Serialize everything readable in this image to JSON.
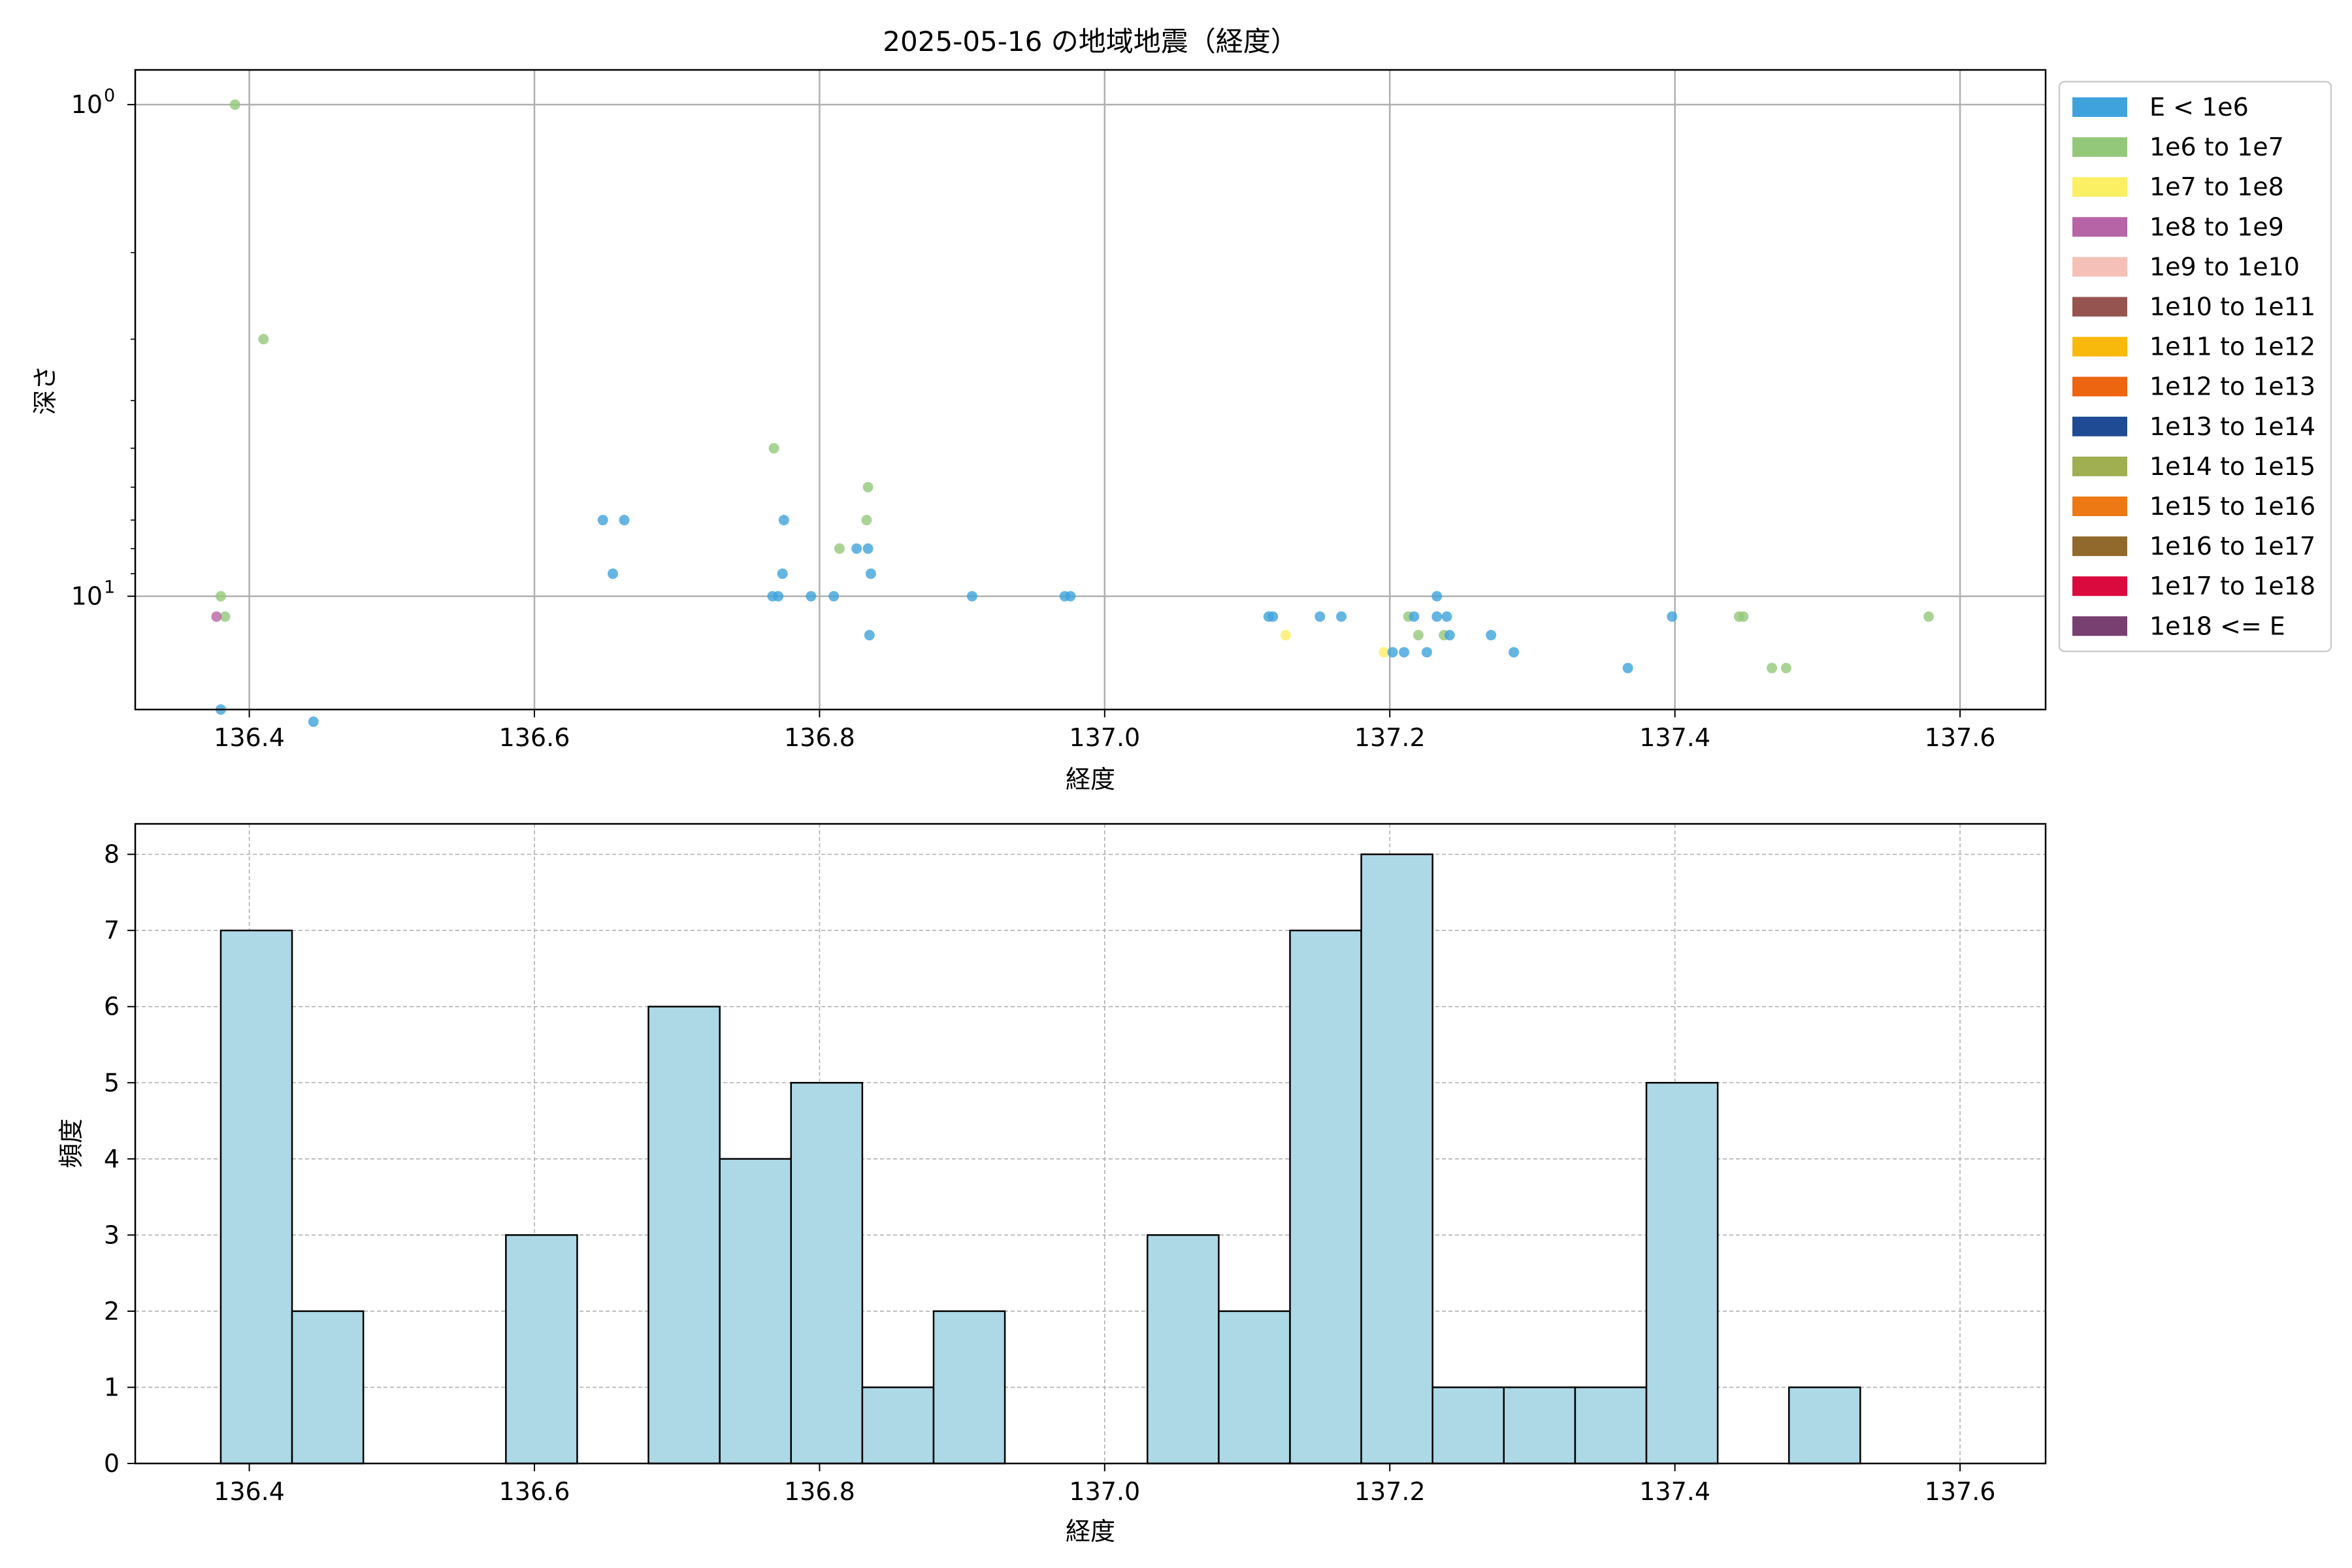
{
  "chart_data": [
    {
      "type": "scatter",
      "title": "2025-05-16 の地域地震（経度）",
      "xlabel": "経度",
      "ylabel": "深さ",
      "xlim": [
        136.32,
        137.66
      ],
      "ylim_display": [
        0.85,
        17.0
      ],
      "y_inverted": true,
      "y_scale": "log",
      "grid": true,
      "x_ticks": [
        136.4,
        136.6,
        136.8,
        137.0,
        137.2,
        137.4,
        137.6
      ],
      "x_tick_labels": [
        "136.4",
        "136.6",
        "136.8",
        "137.0",
        "137.2",
        "137.4",
        "137.6"
      ],
      "y_major_ticks": [
        {
          "value": 1,
          "base": "10",
          "exp": "0"
        },
        {
          "value": 10,
          "base": "10",
          "exp": "1"
        }
      ],
      "y_minor_ticks": [
        2,
        3,
        4,
        5,
        6,
        7,
        8,
        9
      ],
      "legend_position": "outside-right",
      "legend": [
        {
          "label": "E < 1e6",
          "color": "#3fa2dc"
        },
        {
          "label": "1e6 to 1e7",
          "color": "#93c87a"
        },
        {
          "label": "1e7 to 1e8",
          "color": "#fbef64"
        },
        {
          "label": "1e8 to 1e9",
          "color": "#b764a6"
        },
        {
          "label": "1e9 to 1e10",
          "color": "#f5c0b8"
        },
        {
          "label": "1e10 to 1e11",
          "color": "#965450"
        },
        {
          "label": "1e11 to 1e12",
          "color": "#f9b90c"
        },
        {
          "label": "1e12 to 1e13",
          "color": "#ed6411"
        },
        {
          "label": "1e13 to 1e14",
          "color": "#1e4b93"
        },
        {
          "label": "1e14 to 1e15",
          "color": "#9faf51"
        },
        {
          "label": "1e15 to 1e16",
          "color": "#ec7914"
        },
        {
          "label": "1e16 to 1e17",
          "color": "#92692c"
        },
        {
          "label": "1e17 to 1e18",
          "color": "#db0a3e"
        },
        {
          "label": "1e18 <= E",
          "color": "#784070"
        }
      ],
      "points": [
        {
          "x": 136.39,
          "y": 1.0,
          "cls": 1
        },
        {
          "x": 136.41,
          "y": 3.0,
          "cls": 1
        },
        {
          "x": 136.38,
          "y": 10.0,
          "cls": 1
        },
        {
          "x": 136.383,
          "y": 11.0,
          "cls": 1
        },
        {
          "x": 136.377,
          "y": 11.0,
          "cls": 3
        },
        {
          "x": 136.38,
          "y": 17.0,
          "cls": 0
        },
        {
          "x": 136.445,
          "y": 18.0,
          "cls": 0
        },
        {
          "x": 136.648,
          "y": 7.0,
          "cls": 0
        },
        {
          "x": 136.663,
          "y": 7.0,
          "cls": 0
        },
        {
          "x": 136.655,
          "y": 9.0,
          "cls": 0
        },
        {
          "x": 136.768,
          "y": 5.0,
          "cls": 1
        },
        {
          "x": 136.775,
          "y": 7.0,
          "cls": 0
        },
        {
          "x": 136.774,
          "y": 9.0,
          "cls": 0
        },
        {
          "x": 136.767,
          "y": 10.0,
          "cls": 0
        },
        {
          "x": 136.771,
          "y": 10.0,
          "cls": 0
        },
        {
          "x": 136.794,
          "y": 10.0,
          "cls": 0
        },
        {
          "x": 136.81,
          "y": 10.0,
          "cls": 0
        },
        {
          "x": 136.814,
          "y": 8.0,
          "cls": 1
        },
        {
          "x": 136.826,
          "y": 8.0,
          "cls": 0
        },
        {
          "x": 136.834,
          "y": 8.0,
          "cls": 0
        },
        {
          "x": 136.834,
          "y": 6.0,
          "cls": 1
        },
        {
          "x": 136.833,
          "y": 7.0,
          "cls": 1
        },
        {
          "x": 136.836,
          "y": 9.0,
          "cls": 0
        },
        {
          "x": 136.835,
          "y": 12.0,
          "cls": 0
        },
        {
          "x": 136.907,
          "y": 10.0,
          "cls": 0
        },
        {
          "x": 136.972,
          "y": 10.0,
          "cls": 0
        },
        {
          "x": 136.976,
          "y": 10.0,
          "cls": 0
        },
        {
          "x": 137.115,
          "y": 11.0,
          "cls": 0
        },
        {
          "x": 137.118,
          "y": 11.0,
          "cls": 0
        },
        {
          "x": 137.127,
          "y": 12.0,
          "cls": 2
        },
        {
          "x": 137.151,
          "y": 11.0,
          "cls": 0
        },
        {
          "x": 137.166,
          "y": 11.0,
          "cls": 0
        },
        {
          "x": 137.196,
          "y": 13.0,
          "cls": 2
        },
        {
          "x": 137.202,
          "y": 13.0,
          "cls": 0
        },
        {
          "x": 137.21,
          "y": 13.0,
          "cls": 0
        },
        {
          "x": 137.213,
          "y": 11.0,
          "cls": 1
        },
        {
          "x": 137.217,
          "y": 11.0,
          "cls": 0
        },
        {
          "x": 137.22,
          "y": 12.0,
          "cls": 1
        },
        {
          "x": 137.226,
          "y": 13.0,
          "cls": 0
        },
        {
          "x": 137.233,
          "y": 10.0,
          "cls": 0
        },
        {
          "x": 137.233,
          "y": 11.0,
          "cls": 0
        },
        {
          "x": 137.238,
          "y": 12.0,
          "cls": 1
        },
        {
          "x": 137.24,
          "y": 11.0,
          "cls": 0
        },
        {
          "x": 137.242,
          "y": 12.0,
          "cls": 0
        },
        {
          "x": 137.271,
          "y": 12.0,
          "cls": 0
        },
        {
          "x": 137.287,
          "y": 13.0,
          "cls": 0
        },
        {
          "x": 137.367,
          "y": 14.0,
          "cls": 0
        },
        {
          "x": 137.398,
          "y": 11.0,
          "cls": 0
        },
        {
          "x": 137.445,
          "y": 11.0,
          "cls": 1
        },
        {
          "x": 137.448,
          "y": 11.0,
          "cls": 1
        },
        {
          "x": 137.468,
          "y": 14.0,
          "cls": 1
        },
        {
          "x": 137.478,
          "y": 14.0,
          "cls": 1
        },
        {
          "x": 137.578,
          "y": 11.0,
          "cls": 1
        }
      ]
    },
    {
      "type": "bar",
      "xlabel": "経度",
      "ylabel": "頻度",
      "xlim": [
        136.32,
        137.66
      ],
      "ylim": [
        0,
        8.4
      ],
      "grid": true,
      "bar_color": "#add8e6",
      "edge_color": "#000000",
      "x_ticks": [
        136.4,
        136.6,
        136.8,
        137.0,
        137.2,
        137.4,
        137.6
      ],
      "x_tick_labels": [
        "136.4",
        "136.6",
        "136.8",
        "137.0",
        "137.2",
        "137.4",
        "137.6"
      ],
      "y_ticks": [
        0,
        1,
        2,
        3,
        4,
        5,
        6,
        7,
        8
      ],
      "y_tick_labels": [
        "0",
        "1",
        "2",
        "3",
        "4",
        "5",
        "6",
        "7",
        "8"
      ],
      "bin_edges": [
        136.38,
        136.43,
        136.48,
        136.53,
        136.58,
        136.63,
        136.68,
        136.73,
        136.78,
        136.83,
        136.88,
        136.93,
        136.98,
        137.03,
        137.08,
        137.13,
        137.18,
        137.23,
        137.28,
        137.33,
        137.38,
        137.43,
        137.48,
        137.53,
        137.58,
        137.63
      ],
      "counts": [
        7,
        2,
        0,
        0,
        3,
        0,
        6,
        4,
        5,
        1,
        2,
        0,
        0,
        3,
        2,
        7,
        8,
        1,
        1,
        1,
        5,
        0,
        1,
        0,
        0
      ]
    }
  ]
}
